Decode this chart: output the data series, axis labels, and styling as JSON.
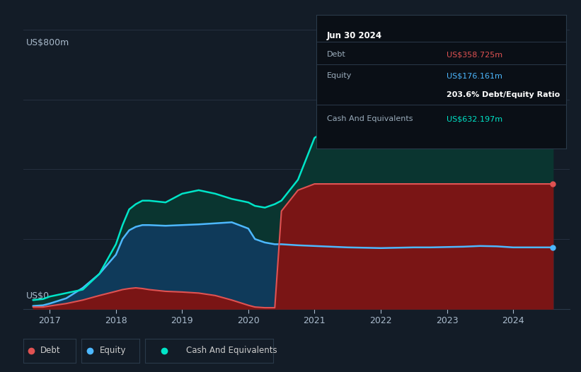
{
  "bg_color": "#131c27",
  "plot_bg_color": "#131c27",
  "ylabel": "US$800m",
  "y0_label": "US$0",
  "ylim": [
    0,
    800
  ],
  "xlim": [
    2016.6,
    2024.85
  ],
  "xticks": [
    2017,
    2018,
    2019,
    2020,
    2021,
    2022,
    2023,
    2024
  ],
  "grid_color": "#253040",
  "info_box": {
    "date": "Jun 30 2024",
    "debt_label": "Debt",
    "debt_value": "US$358.725m",
    "equity_label": "Equity",
    "equity_value": "US$176.161m",
    "ratio_text": "203.6% Debt/Equity Ratio",
    "cash_label": "Cash And Equivalents",
    "cash_value": "US$632.197m",
    "debt_color": "#e05252",
    "equity_color": "#4db8ff",
    "cash_color": "#00e5c8",
    "ratio_color": "#ffffff",
    "label_color": "#9aacbb",
    "header_color": "#ffffff",
    "box_bg": "#0a0f16",
    "box_border": "#2a3a4a"
  },
  "debt_line_color": "#e05252",
  "equity_line_color": "#4db8ff",
  "cash_line_color": "#00e5c8",
  "debt_fill_color": "#7a1515",
  "equity_fill_color": "#0f3a5a",
  "cash_fill_color": "#0a3530",
  "legend_border": "#2a3a4a",
  "legend_bg": "#131c27",
  "legend_text": "#cccccc",
  "years": [
    2016.75,
    2016.9,
    2017.0,
    2017.25,
    2017.5,
    2017.75,
    2018.0,
    2018.1,
    2018.2,
    2018.3,
    2018.4,
    2018.5,
    2018.75,
    2019.0,
    2019.25,
    2019.5,
    2019.75,
    2020.0,
    2020.1,
    2020.25,
    2020.4,
    2020.5,
    2020.75,
    2021.0,
    2021.25,
    2021.5,
    2021.75,
    2022.0,
    2022.25,
    2022.5,
    2022.75,
    2023.0,
    2023.25,
    2023.5,
    2023.75,
    2024.0,
    2024.25,
    2024.5,
    2024.6
  ],
  "debt": [
    5,
    5,
    8,
    15,
    25,
    38,
    50,
    55,
    58,
    60,
    58,
    55,
    50,
    48,
    45,
    38,
    25,
    10,
    5,
    3,
    3,
    280,
    340,
    358,
    358,
    358,
    358,
    358,
    358,
    358,
    358,
    358,
    358,
    358,
    358,
    358,
    358,
    358,
    358
  ],
  "equity": [
    8,
    10,
    15,
    30,
    60,
    100,
    155,
    200,
    225,
    235,
    240,
    240,
    238,
    240,
    242,
    245,
    248,
    230,
    200,
    190,
    185,
    185,
    182,
    180,
    178,
    176,
    175,
    174,
    175,
    176,
    176,
    177,
    178,
    180,
    179,
    176,
    176,
    176,
    176
  ],
  "cash": [
    25,
    28,
    35,
    45,
    55,
    100,
    185,
    240,
    285,
    300,
    310,
    310,
    305,
    330,
    340,
    330,
    315,
    305,
    295,
    290,
    300,
    310,
    370,
    490,
    520,
    555,
    585,
    620,
    645,
    635,
    615,
    605,
    595,
    625,
    598,
    588,
    618,
    632,
    635
  ]
}
